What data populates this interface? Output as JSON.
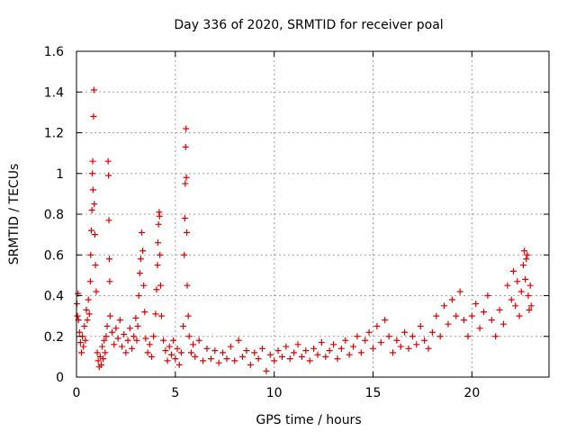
{
  "chart_data": {
    "type": "scatter",
    "title": "Day 336 of 2020, SRMTID for receiver poal",
    "xlabel": "GPS time / hours",
    "ylabel": "SRMTID / TECUs",
    "xlim": [
      0,
      23.9
    ],
    "ylim": [
      0,
      1.6
    ],
    "xticks": [
      0,
      5,
      10,
      15,
      20
    ],
    "xtick_labels": [
      "0",
      "5",
      "10",
      "15",
      "20"
    ],
    "yticks": [
      0,
      0.2,
      0.4,
      0.6,
      0.8,
      1,
      1.2,
      1.4,
      1.6
    ],
    "ytick_labels": [
      "0",
      "0.2",
      "0.4",
      "0.6",
      "0.8",
      "1",
      "1.2",
      "1.4",
      "1.6"
    ],
    "grid": true,
    "marker": "+",
    "series": [
      {
        "name": "SRMTID",
        "color": "#e00000",
        "points": [
          [
            0.02,
            0.36
          ],
          [
            0.05,
            0.3
          ],
          [
            0.08,
            0.41
          ],
          [
            0.1,
            0.28
          ],
          [
            0.15,
            0.22
          ],
          [
            0.2,
            0.17
          ],
          [
            0.25,
            0.12
          ],
          [
            0.3,
            0.2
          ],
          [
            0.35,
            0.15
          ],
          [
            0.4,
            0.25
          ],
          [
            0.45,
            0.18
          ],
          [
            0.5,
            0.33
          ],
          [
            0.55,
            0.28
          ],
          [
            0.6,
            0.38
          ],
          [
            0.65,
            0.31
          ],
          [
            0.7,
            0.47
          ],
          [
            0.72,
            0.6
          ],
          [
            0.75,
            0.72
          ],
          [
            0.78,
            0.82
          ],
          [
            0.8,
            1.0
          ],
          [
            0.82,
            1.06
          ],
          [
            0.84,
            0.92
          ],
          [
            0.86,
            1.28
          ],
          [
            0.88,
            1.41
          ],
          [
            0.9,
            0.85
          ],
          [
            0.93,
            0.7
          ],
          [
            0.96,
            0.55
          ],
          [
            1.0,
            0.42
          ],
          [
            1.05,
            0.12
          ],
          [
            1.1,
            0.08
          ],
          [
            1.15,
            0.05
          ],
          [
            1.2,
            0.1
          ],
          [
            1.25,
            0.06
          ],
          [
            1.3,
            0.15
          ],
          [
            1.35,
            0.09
          ],
          [
            1.4,
            0.18
          ],
          [
            1.45,
            0.12
          ],
          [
            1.5,
            0.2
          ],
          [
            1.55,
            0.25
          ],
          [
            1.6,
            1.06
          ],
          [
            1.62,
            0.99
          ],
          [
            1.64,
            0.77
          ],
          [
            1.66,
            0.58
          ],
          [
            1.68,
            0.47
          ],
          [
            1.7,
            0.3
          ],
          [
            1.8,
            0.22
          ],
          [
            1.9,
            0.16
          ],
          [
            2.0,
            0.24
          ],
          [
            2.1,
            0.19
          ],
          [
            2.2,
            0.28
          ],
          [
            2.3,
            0.15
          ],
          [
            2.4,
            0.21
          ],
          [
            2.5,
            0.12
          ],
          [
            2.6,
            0.18
          ],
          [
            2.7,
            0.24
          ],
          [
            2.8,
            0.14
          ],
          [
            2.9,
            0.2
          ],
          [
            3.0,
            0.29
          ],
          [
            3.05,
            0.18
          ],
          [
            3.1,
            0.25
          ],
          [
            3.15,
            0.4
          ],
          [
            3.2,
            0.51
          ],
          [
            3.25,
            0.58
          ],
          [
            3.3,
            0.71
          ],
          [
            3.35,
            0.62
          ],
          [
            3.4,
            0.45
          ],
          [
            3.45,
            0.32
          ],
          [
            3.5,
            0.19
          ],
          [
            3.6,
            0.12
          ],
          [
            3.7,
            0.16
          ],
          [
            3.8,
            0.1
          ],
          [
            3.9,
            0.2
          ],
          [
            4.0,
            0.31
          ],
          [
            4.05,
            0.43
          ],
          [
            4.1,
            0.55
          ],
          [
            4.12,
            0.66
          ],
          [
            4.15,
            0.75
          ],
          [
            4.18,
            0.81
          ],
          [
            4.2,
            0.79
          ],
          [
            4.22,
            0.6
          ],
          [
            4.25,
            0.45
          ],
          [
            4.3,
            0.3
          ],
          [
            4.4,
            0.18
          ],
          [
            4.5,
            0.13
          ],
          [
            4.6,
            0.08
          ],
          [
            4.7,
            0.15
          ],
          [
            4.8,
            0.11
          ],
          [
            4.9,
            0.18
          ],
          [
            5.0,
            0.09
          ],
          [
            5.1,
            0.14
          ],
          [
            5.2,
            0.06
          ],
          [
            5.3,
            0.12
          ],
          [
            5.4,
            0.25
          ],
          [
            5.45,
            0.6
          ],
          [
            5.48,
            0.78
          ],
          [
            5.5,
            0.95
          ],
          [
            5.52,
            1.13
          ],
          [
            5.54,
            1.22
          ],
          [
            5.56,
            0.98
          ],
          [
            5.58,
            0.71
          ],
          [
            5.6,
            0.45
          ],
          [
            5.65,
            0.3
          ],
          [
            5.7,
            0.2
          ],
          [
            5.8,
            0.12
          ],
          [
            5.9,
            0.16
          ],
          [
            6.0,
            0.1
          ],
          [
            6.2,
            0.18
          ],
          [
            6.4,
            0.08
          ],
          [
            6.6,
            0.14
          ],
          [
            6.8,
            0.09
          ],
          [
            7.0,
            0.13
          ],
          [
            7.2,
            0.07
          ],
          [
            7.4,
            0.12
          ],
          [
            7.6,
            0.09
          ],
          [
            7.8,
            0.15
          ],
          [
            8.0,
            0.08
          ],
          [
            8.2,
            0.18
          ],
          [
            8.4,
            0.1
          ],
          [
            8.6,
            0.13
          ],
          [
            8.8,
            0.06
          ],
          [
            9.0,
            0.12
          ],
          [
            9.2,
            0.09
          ],
          [
            9.4,
            0.14
          ],
          [
            9.6,
            0.03
          ],
          [
            9.8,
            0.11
          ],
          [
            10.0,
            0.08
          ],
          [
            10.2,
            0.13
          ],
          [
            10.4,
            0.1
          ],
          [
            10.6,
            0.15
          ],
          [
            10.8,
            0.09
          ],
          [
            11.0,
            0.12
          ],
          [
            11.2,
            0.16
          ],
          [
            11.4,
            0.1
          ],
          [
            11.6,
            0.13
          ],
          [
            11.8,
            0.08
          ],
          [
            12.0,
            0.14
          ],
          [
            12.2,
            0.11
          ],
          [
            12.4,
            0.17
          ],
          [
            12.6,
            0.1
          ],
          [
            12.8,
            0.13
          ],
          [
            13.0,
            0.16
          ],
          [
            13.2,
            0.09
          ],
          [
            13.4,
            0.14
          ],
          [
            13.6,
            0.18
          ],
          [
            13.8,
            0.11
          ],
          [
            14.0,
            0.15
          ],
          [
            14.2,
            0.2
          ],
          [
            14.4,
            0.12
          ],
          [
            14.6,
            0.18
          ],
          [
            14.8,
            0.22
          ],
          [
            15.0,
            0.14
          ],
          [
            15.2,
            0.25
          ],
          [
            15.4,
            0.17
          ],
          [
            15.6,
            0.28
          ],
          [
            15.8,
            0.2
          ],
          [
            16.0,
            0.12
          ],
          [
            16.2,
            0.18
          ],
          [
            16.4,
            0.15
          ],
          [
            16.6,
            0.22
          ],
          [
            16.8,
            0.14
          ],
          [
            17.0,
            0.2
          ],
          [
            17.2,
            0.16
          ],
          [
            17.4,
            0.25
          ],
          [
            17.6,
            0.18
          ],
          [
            17.8,
            0.14
          ],
          [
            18.0,
            0.22
          ],
          [
            18.2,
            0.3
          ],
          [
            18.4,
            0.2
          ],
          [
            18.6,
            0.35
          ],
          [
            18.8,
            0.26
          ],
          [
            19.0,
            0.38
          ],
          [
            19.2,
            0.3
          ],
          [
            19.4,
            0.42
          ],
          [
            19.6,
            0.28
          ],
          [
            19.8,
            0.2
          ],
          [
            20.0,
            0.3
          ],
          [
            20.2,
            0.36
          ],
          [
            20.4,
            0.24
          ],
          [
            20.6,
            0.32
          ],
          [
            20.8,
            0.4
          ],
          [
            21.0,
            0.28
          ],
          [
            21.2,
            0.2
          ],
          [
            21.4,
            0.33
          ],
          [
            21.6,
            0.26
          ],
          [
            21.8,
            0.45
          ],
          [
            22.0,
            0.38
          ],
          [
            22.1,
            0.52
          ],
          [
            22.2,
            0.35
          ],
          [
            22.3,
            0.47
          ],
          [
            22.4,
            0.3
          ],
          [
            22.5,
            0.42
          ],
          [
            22.6,
            0.55
          ],
          [
            22.65,
            0.62
          ],
          [
            22.7,
            0.48
          ],
          [
            22.75,
            0.58
          ],
          [
            22.8,
            0.6
          ],
          [
            22.85,
            0.4
          ],
          [
            22.9,
            0.33
          ],
          [
            22.95,
            0.45
          ],
          [
            23.0,
            0.35
          ]
        ]
      }
    ]
  }
}
